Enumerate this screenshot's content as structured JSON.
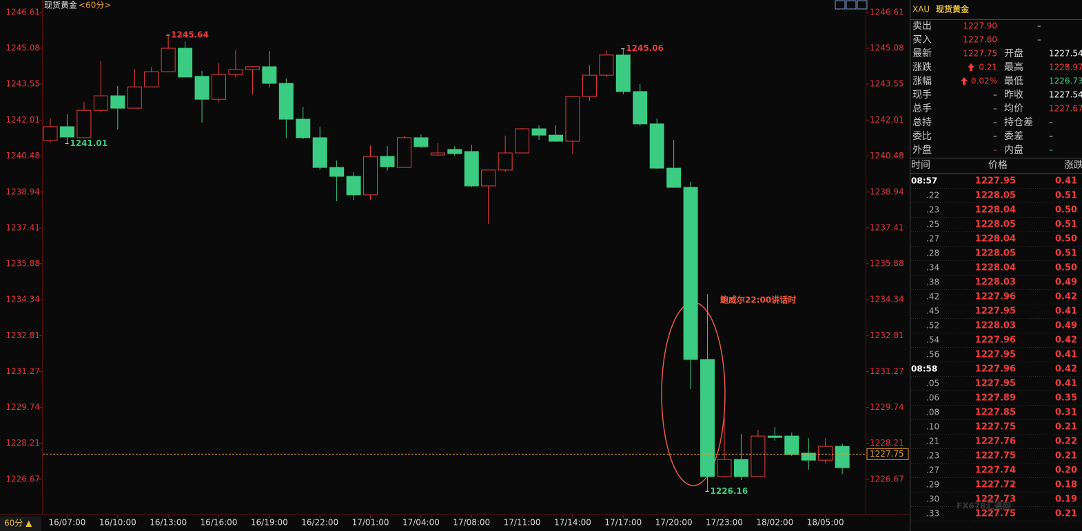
{
  "chart_data": {
    "type": "candlestick",
    "title": "现货黄金",
    "period": "<60分>",
    "period_selector": "60分 ▲",
    "categories": [
      null,
      "16/07:00",
      null,
      null,
      "16/10:00",
      null,
      null,
      "16/13:00",
      null,
      null,
      "16/16:00",
      null,
      null,
      "16/19:00",
      null,
      null,
      "16/22:00",
      null,
      null,
      "17/01:00",
      null,
      null,
      "17/04:00",
      null,
      null,
      "17/08:00",
      null,
      null,
      "17/11:00",
      null,
      null,
      "17/14:00",
      null,
      null,
      "17/17:00",
      null,
      null,
      "17/20:00",
      null,
      null,
      "17/23:00",
      null,
      null,
      "18/02:00",
      null,
      null,
      "18/05:00",
      null
    ],
    "open": [
      1241.14,
      1241.73,
      1241.26,
      1242.43,
      1243.05,
      1242.52,
      1243.43,
      1244.08,
      1245.08,
      1243.88,
      1242.9,
      1243.96,
      1244.17,
      1244.29,
      1243.58,
      1242.05,
      1241.26,
      1239.99,
      1239.61,
      1238.82,
      1240.46,
      1239.99,
      1241.26,
      1240.52,
      1240.76,
      1240.67,
      1239.2,
      1239.88,
      1240.61,
      1241.64,
      1241.37,
      1241.11,
      1243.02,
      1243.93,
      1244.79,
      1243.23,
      1241.85,
      1239.96,
      1239.14,
      1231.79,
      1226.79,
      1227.52,
      1226.79,
      1228.52,
      1228.52,
      1227.79,
      1227.49,
      1228.08
    ],
    "high": [
      1242.08,
      1242.26,
      1242.79,
      1244.55,
      1243.46,
      1244.2,
      1244.29,
      1245.64,
      1245.37,
      1244.11,
      1244.43,
      1245.02,
      1244.32,
      1244.96,
      1243.79,
      1242.58,
      1241.73,
      1240.29,
      1239.79,
      1240.93,
      1240.9,
      1241.32,
      1241.4,
      1241.02,
      1240.9,
      1240.96,
      1239.88,
      1241.35,
      1241.67,
      1241.79,
      1241.79,
      1243.02,
      1244.37,
      1244.99,
      1245.06,
      1243.55,
      1242.08,
      1241.17,
      1239.38,
      1234.58,
      1229.4,
      1228.61,
      1228.79,
      1228.9,
      1228.67,
      1228.43,
      1228.43,
      1228.2
    ],
    "low": [
      1241.05,
      1241.01,
      1241.26,
      1242.34,
      1241.61,
      1242.52,
      1243.43,
      1244.08,
      1243.85,
      1241.9,
      1242.79,
      1243.82,
      1243.11,
      1243.4,
      1241.26,
      1241.2,
      1239.88,
      1238.55,
      1238.61,
      1238.61,
      1239.85,
      1239.99,
      1240.82,
      1240.49,
      1240.49,
      1239.14,
      1237.58,
      1239.79,
      1240.61,
      1241.17,
      1241.08,
      1240.58,
      1242.82,
      1243.85,
      1243.11,
      1241.76,
      1239.93,
      1239.11,
      1230.52,
      1226.16,
      1226.79,
      1226.64,
      1226.79,
      1228.32,
      1227.67,
      1227.08,
      1227.35,
      1226.9
    ],
    "close": [
      1241.73,
      1241.29,
      1242.43,
      1243.05,
      1242.52,
      1243.43,
      1244.08,
      1245.08,
      1243.85,
      1242.9,
      1243.96,
      1244.17,
      1244.29,
      1243.58,
      1242.05,
      1241.26,
      1239.99,
      1239.61,
      1238.82,
      1240.46,
      1240.02,
      1241.26,
      1240.88,
      1240.61,
      1240.58,
      1239.2,
      1239.88,
      1240.61,
      1241.64,
      1241.37,
      1241.11,
      1243.02,
      1243.93,
      1244.79,
      1243.23,
      1241.85,
      1239.96,
      1239.14,
      1231.79,
      1226.79,
      1227.52,
      1226.79,
      1228.52,
      1228.46,
      1227.73,
      1227.49,
      1228.08,
      1227.17
    ],
    "up_color": "#f03c3c",
    "down_color": "#3ccb82",
    "ylim": [
      1225.23,
      1247.14
    ],
    "yticks": [
      1226.67,
      1228.21,
      1229.74,
      1231.27,
      1232.81,
      1234.34,
      1235.88,
      1237.41,
      1238.94,
      1240.48,
      1242.01,
      1243.55,
      1245.08,
      1246.61
    ],
    "high_labels": [
      {
        "index": 7,
        "value": 1245.64
      },
      {
        "index": 34,
        "value": 1245.06
      }
    ],
    "low_labels": [
      {
        "index": 1,
        "value": 1241.01
      },
      {
        "index": 39,
        "value": 1226.16
      }
    ],
    "last_price": 1227.75,
    "annotation": "鲍威尔22:00讲话时"
  },
  "quote_panel": {
    "symbol": "XAU",
    "name": "现货黄金",
    "rows": [
      [
        "卖出",
        "1227.90",
        "–"
      ],
      [
        "买入",
        "1227.60",
        "–"
      ],
      [
        "最新",
        "1227.75",
        "开盘",
        "1227.54"
      ],
      [
        "涨跌",
        "0.21",
        "最高",
        "1228.97"
      ],
      [
        "涨幅",
        "0.02%",
        "最低",
        "1226.73"
      ],
      [
        "现手",
        "–",
        "昨收",
        "1227.54"
      ],
      [
        "总手",
        "–",
        "均价",
        "1227.67"
      ],
      [
        "总持",
        "–",
        "持仓差",
        "–"
      ],
      [
        "委比",
        "–",
        "委差",
        "–"
      ],
      [
        "外盘",
        "–",
        "内盘",
        "–"
      ]
    ],
    "tick_header": [
      "时间",
      "价格",
      "涨跌"
    ],
    "ticks": [
      [
        "08:57",
        "1227.95",
        "0.41"
      ],
      [
        ".22",
        "1228.05",
        "0.51"
      ],
      [
        ".23",
        "1228.04",
        "0.50"
      ],
      [
        ".25",
        "1228.05",
        "0.51"
      ],
      [
        ".27",
        "1228.04",
        "0.50"
      ],
      [
        ".28",
        "1228.05",
        "0.51"
      ],
      [
        ".34",
        "1228.04",
        "0.50"
      ],
      [
        ".38",
        "1228.03",
        "0.49"
      ],
      [
        ".42",
        "1227.96",
        "0.42"
      ],
      [
        ".45",
        "1227.95",
        "0.41"
      ],
      [
        ".52",
        "1228.03",
        "0.49"
      ],
      [
        ".54",
        "1227.96",
        "0.42"
      ],
      [
        ".56",
        "1227.95",
        "0.41"
      ],
      [
        "08:58",
        "1227.96",
        "0.42"
      ],
      [
        ".05",
        "1227.95",
        "0.41"
      ],
      [
        ".06",
        "1227.89",
        "0.35"
      ],
      [
        ".08",
        "1227.85",
        "0.31"
      ],
      [
        ".10",
        "1227.75",
        "0.21"
      ],
      [
        ".21",
        "1227.76",
        "0.22"
      ],
      [
        ".23",
        "1227.75",
        "0.21"
      ],
      [
        ".27",
        "1227.74",
        "0.20"
      ],
      [
        ".29",
        "1227.72",
        "0.18"
      ],
      [
        ".30",
        "1227.73",
        "0.19"
      ],
      [
        ".33",
        "1227.75",
        "0.21"
      ]
    ],
    "watermark": "FX678汇通网"
  }
}
